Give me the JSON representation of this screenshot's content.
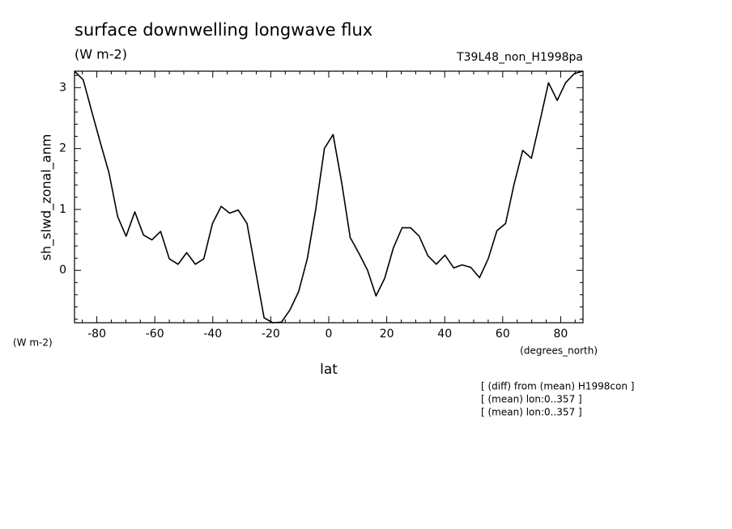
{
  "chart_data": {
    "type": "line",
    "title": "surface downwelling longwave flux",
    "subtitle": "(W m-2)",
    "run_label": "T39L48_non_H1998pa",
    "y_label": "sh_slwd_zonal_anm",
    "y_units": "(W m-2)",
    "x_label": "lat",
    "x_units": "(degrees_north)",
    "annotations": [
      "[ (diff) from (mean) H1998con ]",
      "[ (mean) lon:0..357 ]",
      "[ (mean) lon:0..357 ]"
    ],
    "x": [
      -87.7,
      -84.7,
      -81.7,
      -78.8,
      -75.8,
      -72.8,
      -69.9,
      -66.9,
      -63.9,
      -61.0,
      -58.0,
      -55.0,
      -52.0,
      -49.0,
      -46.0,
      -43.1,
      -40.1,
      -37.1,
      -34.2,
      -31.2,
      -28.2,
      -25.3,
      -22.3,
      -19.3,
      -16.3,
      -13.4,
      -10.4,
      -7.4,
      -4.5,
      -1.5,
      1.5,
      4.5,
      7.4,
      10.4,
      13.4,
      16.3,
      19.3,
      22.3,
      25.3,
      28.2,
      31.2,
      34.2,
      37.1,
      40.1,
      43.1,
      46.0,
      49.0,
      52.0,
      55.0,
      58.0,
      61.0,
      63.9,
      66.9,
      69.9,
      72.8,
      75.8,
      78.8,
      81.7,
      84.7,
      87.7
    ],
    "series": [
      {
        "color": "#000000",
        "values": [
          3.27,
          3.13,
          2.6,
          2.1,
          1.6,
          0.88,
          0.56,
          0.96,
          0.58,
          0.5,
          0.64,
          0.19,
          0.1,
          0.29,
          0.1,
          0.19,
          0.77,
          1.05,
          0.94,
          0.99,
          0.77,
          0.01,
          -0.78,
          -0.86,
          -0.85,
          -0.65,
          -0.35,
          0.19,
          1.0,
          2.0,
          2.23,
          1.43,
          0.54,
          0.28,
          0.0,
          -0.42,
          -0.13,
          0.37,
          0.7,
          0.7,
          0.56,
          0.24,
          0.1,
          0.25,
          0.04,
          0.09,
          0.05,
          -0.12,
          0.19,
          0.65,
          0.77,
          1.41,
          1.97,
          1.84,
          2.44,
          3.08,
          2.79,
          3.08,
          3.23,
          3.27
        ]
      }
    ],
    "xlim": [
      -87.7,
      87.7
    ],
    "ylim": [
      -0.86,
      3.27
    ],
    "xticks": [
      -80,
      -60,
      -40,
      -20,
      0,
      20,
      40,
      60,
      80
    ],
    "yticks": [
      0,
      1,
      2,
      3
    ],
    "xminorticks": [
      -85,
      -75,
      -70,
      -65,
      -55,
      -50,
      -45,
      -35,
      -30,
      -25,
      -15,
      -10,
      -5,
      5,
      10,
      15,
      25,
      30,
      35,
      45,
      50,
      55,
      65,
      70,
      75,
      85
    ],
    "yminorticks": [
      -0.8,
      -0.6,
      -0.4,
      -0.2,
      0.2,
      0.4,
      0.6,
      0.8,
      1.2,
      1.4,
      1.6,
      1.8,
      2.2,
      2.4,
      2.6,
      2.8,
      3.2
    ],
    "grid": false
  }
}
